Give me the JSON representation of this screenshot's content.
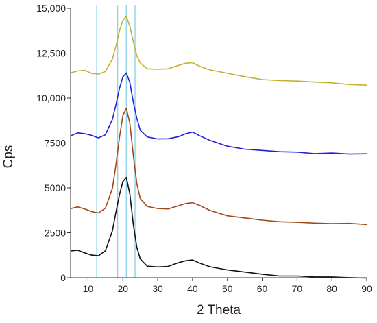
{
  "chart_data": {
    "type": "line",
    "title": "",
    "xlabel": "2 Theta",
    "ylabel": "Cps",
    "xlim": [
      5,
      90
    ],
    "ylim": [
      0,
      15000
    ],
    "x_ticks": [
      10,
      20,
      30,
      40,
      50,
      60,
      70,
      80,
      90
    ],
    "y_ticks": [
      {
        "value": 0,
        "label": "0"
      },
      {
        "value": 2500,
        "label": "2500"
      },
      {
        "value": 5000,
        "label": "5000"
      },
      {
        "value": 7500,
        "label": "7500"
      },
      {
        "value": 10000,
        "label": "10,000"
      },
      {
        "value": 12500,
        "label": "12,500"
      },
      {
        "value": 15000,
        "label": "15,000"
      }
    ],
    "reference_lines_x": [
      12.5,
      18.5,
      21.0,
      23.5
    ],
    "reference_line_color": "#8fd3e8",
    "grid": false,
    "x": [
      5,
      7,
      9,
      11,
      13,
      15,
      17,
      18,
      19,
      20,
      21,
      22,
      23,
      24,
      25,
      27,
      30,
      33,
      36,
      38,
      40,
      42,
      45,
      50,
      55,
      60,
      65,
      70,
      75,
      80,
      85,
      90
    ],
    "series": [
      {
        "color": "#c4b030",
        "values": [
          11400,
          11550,
          11550,
          11400,
          11350,
          11500,
          12200,
          12900,
          13700,
          14300,
          14550,
          14000,
          13100,
          12350,
          11950,
          11650,
          11650,
          11650,
          11850,
          11950,
          12000,
          11800,
          11600,
          11350,
          11150,
          11000,
          10950,
          10900,
          10850,
          10820,
          10800,
          10750
        ]
      },
      {
        "color": "#2020d8",
        "values": [
          7900,
          8050,
          8000,
          7900,
          7750,
          7950,
          8800,
          9600,
          10500,
          11200,
          11400,
          10900,
          9800,
          8900,
          8250,
          7850,
          7700,
          7700,
          7850,
          8000,
          8100,
          7900,
          7600,
          7350,
          7200,
          7100,
          7050,
          7000,
          6950,
          6950,
          6900,
          6880
        ]
      },
      {
        "color": "#a04818",
        "values": [
          3800,
          3900,
          3850,
          3700,
          3650,
          3900,
          5000,
          6300,
          7800,
          9000,
          9400,
          8600,
          6800,
          5200,
          4400,
          3950,
          3850,
          3850,
          4050,
          4150,
          4200,
          4050,
          3750,
          3450,
          3300,
          3200,
          3100,
          3050,
          3020,
          3000,
          2980,
          2950
        ]
      },
      {
        "color": "#101010",
        "values": [
          1500,
          1550,
          1400,
          1250,
          1200,
          1500,
          2600,
          3600,
          4600,
          5300,
          5600,
          4700,
          3000,
          1700,
          1050,
          650,
          620,
          650,
          800,
          900,
          950,
          800,
          600,
          400,
          280,
          200,
          140,
          100,
          80,
          60,
          40,
          20
        ]
      }
    ]
  }
}
